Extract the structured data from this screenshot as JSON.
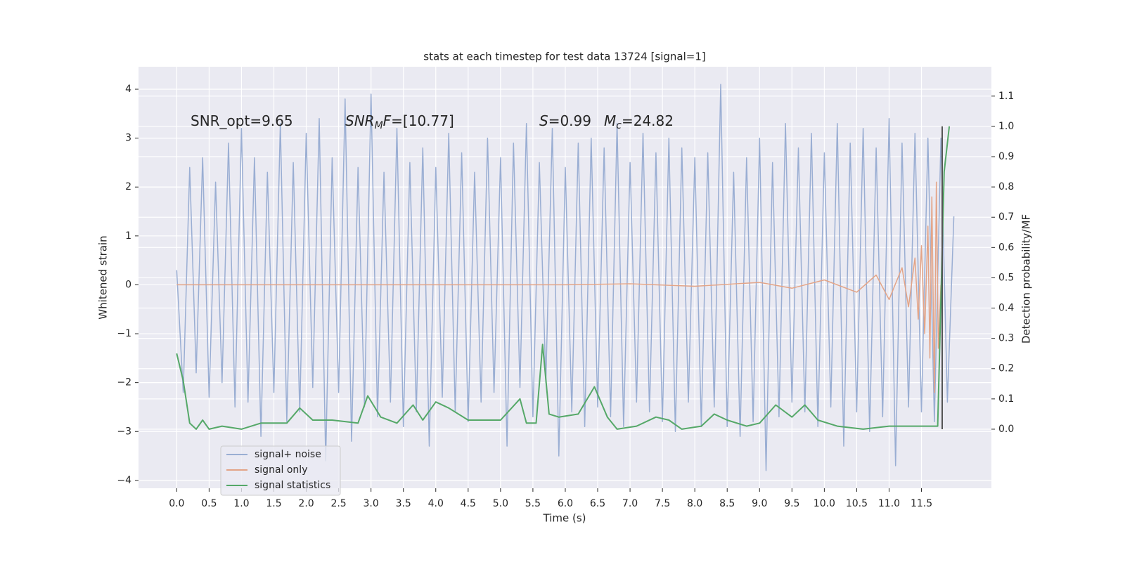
{
  "chart_data": {
    "type": "line",
    "title": "stats at each timestep for test data 13724 [signal=1]",
    "xlabel": "Time (s)",
    "ylabel": "Whitened strain",
    "y2label": "Detection probability/MF",
    "xlim": [
      -0.59,
      12.58
    ],
    "ylim": [
      -4.16,
      4.46
    ],
    "y2lim": [
      -0.195,
      1.197
    ],
    "grid": true,
    "legend": "lower left",
    "xticks": [
      {
        "value": 0,
        "label": "0.0"
      },
      {
        "value": 0.5,
        "label": "0.5"
      },
      {
        "value": 1,
        "label": "1.0"
      },
      {
        "value": 1.5,
        "label": "1.5"
      },
      {
        "value": 2,
        "label": "2.0"
      },
      {
        "value": 2.5,
        "label": "2.5"
      },
      {
        "value": 3,
        "label": "3.0"
      },
      {
        "value": 3.5,
        "label": "3.5"
      },
      {
        "value": 4,
        "label": "4.0"
      },
      {
        "value": 4.5,
        "label": "4.5"
      },
      {
        "value": 5,
        "label": "5.0"
      },
      {
        "value": 5.5,
        "label": "5.5"
      },
      {
        "value": 6,
        "label": "6.0"
      },
      {
        "value": 6.5,
        "label": "6.5"
      },
      {
        "value": 7,
        "label": "7.0"
      },
      {
        "value": 7.5,
        "label": "7.5"
      },
      {
        "value": 8,
        "label": "8.0"
      },
      {
        "value": 8.5,
        "label": "8.5"
      },
      {
        "value": 9,
        "label": "9.0"
      },
      {
        "value": 9.5,
        "label": "9.5"
      },
      {
        "value": 10,
        "label": "10.0"
      },
      {
        "value": 10.5,
        "label": "10.5"
      },
      {
        "value": 11,
        "label": "11.0"
      },
      {
        "value": 11.5,
        "label": "11.5"
      }
    ],
    "yticks": [
      {
        "value": -4,
        "label": "−4"
      },
      {
        "value": -3,
        "label": "−3"
      },
      {
        "value": -2,
        "label": "−2"
      },
      {
        "value": -1,
        "label": "−1"
      },
      0,
      1,
      2,
      3,
      4
    ],
    "y2ticks": [
      {
        "value": 0,
        "label": "0.0"
      },
      {
        "value": 0.1,
        "label": "0.1"
      },
      {
        "value": 0.2,
        "label": "0.2"
      },
      {
        "value": 0.3,
        "label": "0.3"
      },
      {
        "value": 0.4,
        "label": "0.4"
      },
      {
        "value": 0.5,
        "label": "0.5"
      },
      {
        "value": 0.6,
        "label": "0.6"
      },
      {
        "value": 0.7,
        "label": "0.7"
      },
      {
        "value": 0.8,
        "label": "0.8"
      },
      {
        "value": 0.9,
        "label": "0.9"
      },
      {
        "value": 1,
        "label": "1.0"
      },
      {
        "value": 1.1,
        "label": "1.1"
      }
    ],
    "series": [
      {
        "name": "signal+ noise",
        "color": "#9aaed3",
        "x": [
          0,
          0.1,
          0.2,
          0.3,
          0.4,
          0.5,
          0.6,
          0.7,
          0.8,
          0.9,
          1,
          1.1,
          1.2,
          1.3,
          1.4,
          1.5,
          1.6,
          1.7,
          1.8,
          1.9,
          2,
          2.1,
          2.2,
          2.3,
          2.4,
          2.5,
          2.6,
          2.7,
          2.8,
          2.9,
          3,
          3.1,
          3.2,
          3.3,
          3.4,
          3.5,
          3.6,
          3.7,
          3.8,
          3.9,
          4,
          4.1,
          4.2,
          4.3,
          4.4,
          4.5,
          4.6,
          4.7,
          4.8,
          4.9,
          5,
          5.1,
          5.2,
          5.3,
          5.4,
          5.5,
          5.6,
          5.7,
          5.8,
          5.9,
          6,
          6.1,
          6.2,
          6.3,
          6.4,
          6.5,
          6.6,
          6.7,
          6.8,
          6.9,
          7,
          7.1,
          7.2,
          7.3,
          7.4,
          7.5,
          7.6,
          7.7,
          7.8,
          7.9,
          8,
          8.1,
          8.2,
          8.3,
          8.4,
          8.5,
          8.6,
          8.7,
          8.8,
          8.9,
          9,
          9.1,
          9.2,
          9.3,
          9.4,
          9.5,
          9.6,
          9.7,
          9.8,
          9.9,
          10,
          10.1,
          10.2,
          10.3,
          10.4,
          10.5,
          10.6,
          10.7,
          10.8,
          10.9,
          11,
          11.1,
          11.2,
          11.3,
          11.4,
          11.5,
          11.6,
          11.7,
          11.8,
          11.9,
          12
        ],
        "values": [
          0.3,
          -2.2,
          2.4,
          -1.8,
          2.6,
          -2.3,
          2.1,
          -2.0,
          2.9,
          -2.5,
          3.2,
          -2.4,
          2.6,
          -3.1,
          2.3,
          -2.2,
          3.3,
          -2.8,
          2.5,
          -2.6,
          3.1,
          -2.1,
          3.4,
          -3.6,
          2.6,
          -2.2,
          3.8,
          -3.2,
          2.4,
          -2.5,
          3.9,
          -2.7,
          2.3,
          -2.4,
          3.2,
          -2.9,
          2.5,
          -2.6,
          2.8,
          -3.3,
          2.4,
          -2.3,
          3.1,
          -2.6,
          2.7,
          -2.8,
          2.3,
          -2.4,
          3.0,
          -2.2,
          2.6,
          -3.3,
          2.9,
          -2.1,
          3.3,
          -2.7,
          2.5,
          -2.0,
          3.2,
          -3.5,
          2.4,
          -2.6,
          2.9,
          -2.9,
          3.0,
          -2.5,
          2.8,
          -2.7,
          3.3,
          -2.9,
          2.5,
          -2.4,
          3.1,
          -2.6,
          2.7,
          -2.8,
          3.0,
          -3.0,
          2.8,
          -2.4,
          2.6,
          -2.9,
          2.7,
          -2.5,
          4.1,
          -2.9,
          2.3,
          -3.1,
          2.6,
          -2.8,
          3.0,
          -3.8,
          2.5,
          -2.7,
          3.3,
          -2.4,
          2.8,
          -2.6,
          3.1,
          -2.9,
          2.7,
          -2.5,
          3.3,
          -3.3,
          2.9,
          -2.6,
          3.2,
          -3.0,
          2.8,
          -2.7,
          3.4,
          -3.7,
          2.9,
          -2.5,
          3.1,
          -2.6,
          3.0,
          -2.8,
          3.0,
          -2.4,
          1.4
        ]
      },
      {
        "name": "signal only",
        "color": "#e3a487",
        "x": [
          0,
          1,
          2,
          3,
          4,
          5,
          6,
          7,
          8,
          9,
          9.5,
          10,
          10.5,
          10.8,
          11.0,
          11.2,
          11.3,
          11.4,
          11.45,
          11.5,
          11.55,
          11.6,
          11.63,
          11.66,
          11.7,
          11.73,
          11.76,
          11.8
        ],
        "values": [
          0,
          0,
          0,
          0,
          0,
          0,
          0,
          0.02,
          -0.03,
          0.05,
          -0.07,
          0.1,
          -0.15,
          0.2,
          -0.3,
          0.35,
          -0.45,
          0.55,
          -0.7,
          0.8,
          -1.0,
          1.2,
          -1.5,
          1.8,
          -2.2,
          2.1,
          -1.3,
          0
        ]
      },
      {
        "name": "signal statistics",
        "color": "#55a868",
        "axis": "y2",
        "x": [
          0,
          0.1,
          0.2,
          0.3,
          0.4,
          0.5,
          0.7,
          1.0,
          1.3,
          1.7,
          1.9,
          2.1,
          2.4,
          2.8,
          2.95,
          3.15,
          3.4,
          3.65,
          3.8,
          4.0,
          4.2,
          4.5,
          5.0,
          5.3,
          5.4,
          5.55,
          5.65,
          5.75,
          5.9,
          6.2,
          6.45,
          6.65,
          6.8,
          7.1,
          7.4,
          7.6,
          7.8,
          8.1,
          8.3,
          8.5,
          8.8,
          9.0,
          9.25,
          9.5,
          9.7,
          9.9,
          10.2,
          10.6,
          11.0,
          11.5,
          11.75,
          11.85,
          11.93
        ],
        "values": [
          0.25,
          0.16,
          0.02,
          0.0,
          0.03,
          0.0,
          0.01,
          0.0,
          0.02,
          0.02,
          0.07,
          0.03,
          0.03,
          0.02,
          0.11,
          0.04,
          0.02,
          0.08,
          0.03,
          0.09,
          0.07,
          0.03,
          0.03,
          0.1,
          0.02,
          0.02,
          0.28,
          0.05,
          0.04,
          0.05,
          0.14,
          0.04,
          0.0,
          0.01,
          0.04,
          0.03,
          0.0,
          0.01,
          0.05,
          0.03,
          0.01,
          0.02,
          0.08,
          0.04,
          0.08,
          0.03,
          0.01,
          0.0,
          0.01,
          0.01,
          0.01,
          0.85,
          1.0
        ]
      }
    ],
    "vline": {
      "x": 11.82,
      "ymin": 0,
      "ymax": 1.0,
      "axis": "y2",
      "color": "#555555"
    },
    "annotations": [
      {
        "parts": [
          {
            "text": "SNR_opt=9.65"
          }
        ]
      },
      {
        "parts": [
          {
            "text": "SNR",
            "style": "italic"
          },
          {
            "text": "M",
            "style": "sub"
          },
          {
            "text": "F",
            "style": "italic"
          },
          {
            "text": "=[10.77]"
          }
        ]
      },
      {
        "parts": [
          {
            "text": "S",
            "style": "italic"
          },
          {
            "text": "=0.99"
          }
        ]
      },
      {
        "parts": [
          {
            "text": "M",
            "style": "italic"
          },
          {
            "text": "c",
            "style": "sub"
          },
          {
            "text": "=24.82"
          }
        ]
      }
    ]
  }
}
